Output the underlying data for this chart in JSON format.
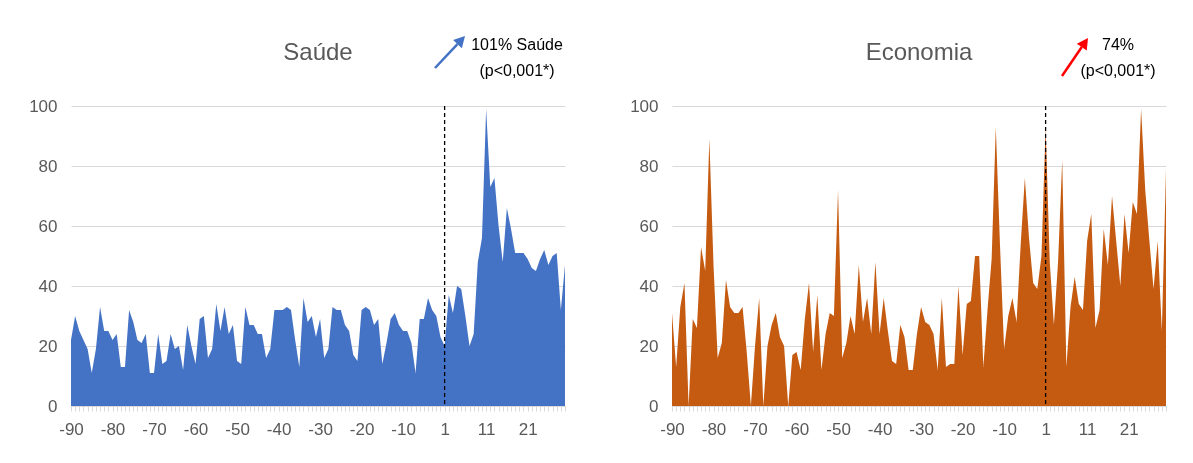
{
  "chart_data": [
    {
      "type": "area",
      "title": "Saúde",
      "categories": [
        "-90",
        null,
        null,
        null,
        null,
        null,
        null,
        null,
        null,
        null,
        "-80",
        null,
        null,
        null,
        null,
        null,
        null,
        null,
        null,
        null,
        "-70",
        null,
        null,
        null,
        null,
        null,
        null,
        null,
        null,
        null,
        "-60",
        null,
        null,
        null,
        null,
        null,
        null,
        null,
        null,
        null,
        "-50",
        null,
        null,
        null,
        null,
        null,
        null,
        null,
        null,
        null,
        "-40",
        null,
        null,
        null,
        null,
        null,
        null,
        null,
        null,
        null,
        "-30",
        null,
        null,
        null,
        null,
        null,
        null,
        null,
        null,
        null,
        "-20",
        null,
        null,
        null,
        null,
        null,
        null,
        null,
        null,
        null,
        "-10",
        null,
        null,
        null,
        null,
        null,
        null,
        null,
        null,
        null,
        "1",
        null,
        null,
        null,
        null,
        null,
        null,
        null,
        null,
        null,
        "11",
        null,
        null,
        null,
        null,
        null,
        null,
        null,
        null,
        null,
        "21",
        null,
        null,
        null,
        null,
        null,
        null,
        null,
        null,
        null
      ],
      "series": [
        {
          "color": "#4472c4",
          "values": [
            22,
            30,
            25,
            22,
            19,
            11,
            19,
            33,
            25,
            25,
            22,
            24,
            13,
            13,
            32,
            28,
            22,
            21,
            24,
            11,
            11,
            24,
            14,
            15,
            24,
            19,
            20,
            12,
            27,
            20,
            14,
            29,
            30,
            16,
            19,
            34,
            25,
            33,
            24,
            27,
            15,
            14,
            33,
            27,
            27,
            24,
            24,
            16,
            19,
            32,
            32,
            32,
            33,
            32,
            22,
            13,
            36,
            28,
            30,
            23,
            29,
            16,
            19,
            33,
            32,
            32,
            27,
            25,
            17,
            15,
            32,
            33,
            32,
            27,
            29,
            14,
            21,
            29,
            31,
            27,
            25,
            25,
            21,
            11,
            29,
            29,
            36,
            32,
            30,
            23,
            20,
            37,
            31,
            40,
            39,
            30,
            20,
            24,
            48,
            56,
            99,
            73,
            76,
            60,
            48,
            66,
            59,
            51,
            51,
            51,
            49,
            46,
            45,
            49,
            52,
            47,
            50,
            51,
            32,
            47
          ]
        }
      ],
      "ylim": [
        0,
        100
      ],
      "yticks": [
        0,
        20,
        40,
        60,
        80,
        100
      ],
      "grid": "y",
      "ref_lines": [
        {
          "axis": "x",
          "value": "1",
          "color": "#000000",
          "line_style": "dashed"
        }
      ],
      "annotations": [
        "101% Saúde",
        "(p<0,001*)"
      ]
    },
    {
      "type": "area",
      "title": "Economia",
      "categories": [
        "-90",
        null,
        null,
        null,
        null,
        null,
        null,
        null,
        null,
        null,
        "-80",
        null,
        null,
        null,
        null,
        null,
        null,
        null,
        null,
        null,
        "-70",
        null,
        null,
        null,
        null,
        null,
        null,
        null,
        null,
        null,
        "-60",
        null,
        null,
        null,
        null,
        null,
        null,
        null,
        null,
        null,
        "-50",
        null,
        null,
        null,
        null,
        null,
        null,
        null,
        null,
        null,
        "-40",
        null,
        null,
        null,
        null,
        null,
        null,
        null,
        null,
        null,
        "-30",
        null,
        null,
        null,
        null,
        null,
        null,
        null,
        null,
        null,
        "-20",
        null,
        null,
        null,
        null,
        null,
        null,
        null,
        null,
        null,
        "-10",
        null,
        null,
        null,
        null,
        null,
        null,
        null,
        null,
        null,
        "1",
        null,
        null,
        null,
        null,
        null,
        null,
        null,
        null,
        null,
        "11",
        null,
        null,
        null,
        null,
        null,
        null,
        null,
        null,
        null,
        "21",
        null,
        null,
        null,
        null,
        null,
        null,
        null,
        null,
        null
      ],
      "series": [
        {
          "color": "#c55a11",
          "values": [
            31,
            13,
            33,
            41,
            0,
            29,
            26,
            53,
            45,
            89,
            47,
            16,
            21,
            42,
            33,
            31,
            31,
            33,
            18,
            0,
            20,
            36,
            0,
            20,
            27,
            31,
            23,
            20,
            0,
            17,
            18,
            12,
            29,
            41,
            18,
            37,
            12,
            24,
            31,
            30,
            72,
            16,
            21,
            30,
            24,
            47,
            28,
            36,
            24,
            48,
            24,
            36,
            25,
            15,
            14,
            27,
            23,
            12,
            12,
            24,
            33,
            28,
            27,
            24,
            12,
            36,
            13,
            14,
            14,
            40,
            17,
            34,
            35,
            50,
            50,
            13,
            32,
            49,
            93,
            54,
            19,
            30,
            36,
            28,
            54,
            76,
            56,
            41,
            39,
            50,
            93,
            48,
            27,
            48,
            82,
            13,
            33,
            43,
            34,
            32,
            55,
            64,
            26,
            32,
            59,
            47,
            70,
            55,
            40,
            64,
            51,
            68,
            64,
            99,
            72,
            55,
            39,
            55,
            25,
            79
          ]
        }
      ],
      "ylim": [
        0,
        100
      ],
      "yticks": [
        0,
        20,
        40,
        60,
        80,
        100
      ],
      "grid": "y",
      "ref_lines": [
        {
          "axis": "x",
          "value": "1",
          "color": "#000000",
          "line_style": "dashed"
        }
      ],
      "annotations": [
        "74%",
        "(p<0,001*)"
      ]
    }
  ]
}
